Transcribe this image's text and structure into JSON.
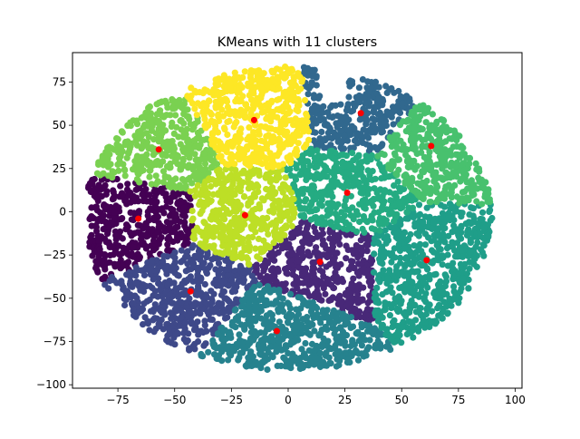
{
  "chart_data": {
    "type": "scatter",
    "title": "KMeans with 11 clusters",
    "xlabel": "",
    "ylabel": "",
    "xlim": [
      -95,
      103
    ],
    "ylim": [
      -102,
      92
    ],
    "xticks": [
      -75,
      -50,
      -25,
      0,
      25,
      50,
      75,
      100
    ],
    "yticks": [
      -100,
      -75,
      -50,
      -25,
      0,
      25,
      50,
      75
    ],
    "xtick_labels": [
      "−75",
      "−50",
      "−25",
      "0",
      "25",
      "50",
      "75",
      "100"
    ],
    "ytick_labels": [
      "−100",
      "−75",
      "−50",
      "−25",
      "0",
      "25",
      "50",
      "75"
    ],
    "grid": false,
    "centroid_color": "#ff0000",
    "clusters": [
      {
        "color": "#440154",
        "center": [
          -66,
          -4
        ],
        "extent": [
          -90,
          -42,
          -38,
          8
        ]
      },
      {
        "color": "#482878",
        "center": [
          14,
          -29
        ],
        "extent": [
          -21,
          47,
          -66,
          3
        ]
      },
      {
        "color": "#3e4989",
        "center": [
          -43,
          -46
        ],
        "extent": [
          -74,
          -10,
          -78,
          -12
        ]
      },
      {
        "color": "#31688e",
        "center": [
          32,
          57
        ],
        "extent": [
          8,
          57,
          30,
          83
        ]
      },
      {
        "color": "#26828e",
        "center": [
          -5,
          -69
        ],
        "extent": [
          -36,
          28,
          -93,
          -40
        ]
      },
      {
        "color": "#1f9e89",
        "center": [
          61,
          -28
        ],
        "extent": [
          31,
          93,
          -67,
          6
        ]
      },
      {
        "color": "#25ab82",
        "center": [
          26,
          11
        ],
        "extent": [
          -4,
          58,
          -11,
          40
        ]
      },
      {
        "color": "#48c16e",
        "center": [
          63,
          38
        ],
        "extent": [
          39,
          88,
          10,
          69
        ]
      },
      {
        "color": "#7ad151",
        "center": [
          -57,
          36
        ],
        "extent": [
          -85,
          -26,
          12,
          62
        ]
      },
      {
        "color": "#bddf26",
        "center": [
          -19,
          -2
        ],
        "extent": [
          -43,
          4,
          -29,
          25
        ]
      },
      {
        "color": "#fde725",
        "center": [
          -15,
          53
        ],
        "extent": [
          -42,
          12,
          25,
          84
        ]
      }
    ]
  }
}
